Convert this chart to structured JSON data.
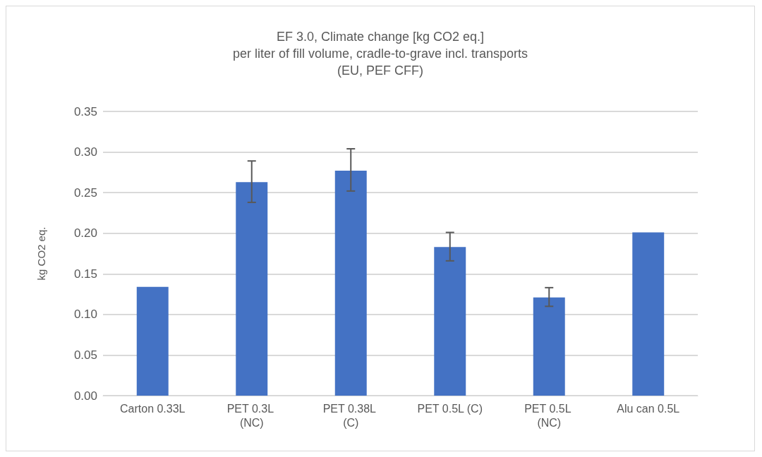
{
  "chart_data": {
    "type": "bar",
    "title": "EF 3.0, Climate change [kg CO2 eq.]\nper liter of fill volume, cradle-to-grave incl. transports\n(EU, PEF CFF)",
    "ylabel": "kg CO2 eq.",
    "categories": [
      "Carton 0.33L",
      "PET 0.3L (NC)",
      "PET 0.38L (C)",
      "PET 0.5L (C)",
      "PET 0.5L (NC)",
      "Alu can 0.5L"
    ],
    "values": [
      0.134,
      0.263,
      0.277,
      0.183,
      0.121,
      0.201
    ],
    "errors": [
      null,
      [
        0.238,
        0.289
      ],
      [
        0.252,
        0.304
      ],
      [
        0.166,
        0.201
      ],
      [
        0.11,
        0.133
      ],
      null
    ],
    "color": "#4472c4",
    "ylim": [
      0,
      0.35
    ],
    "yticks": [
      {
        "value": 0,
        "label": "0.00"
      },
      0.05,
      {
        "value": 0.1,
        "label": "0.10"
      },
      0.15,
      {
        "value": 0.2,
        "label": "0.20"
      },
      0.25,
      {
        "value": 0.3,
        "label": "0.30"
      },
      0.35
    ],
    "grid": "y"
  }
}
